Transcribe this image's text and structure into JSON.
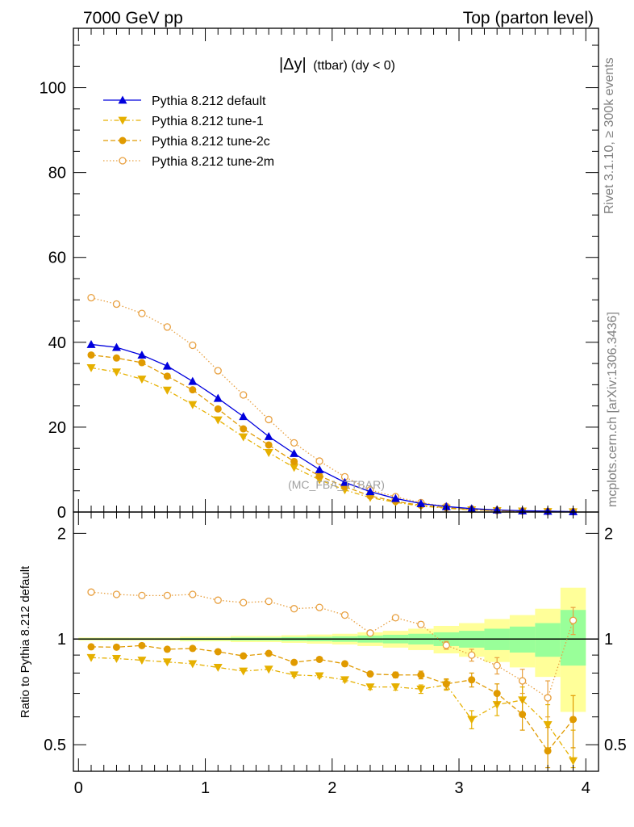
{
  "header": {
    "left": "7000 GeV pp",
    "right": "Top (parton level)"
  },
  "side_labels": {
    "rivet": "Rivet 3.1.10, ≥ 300k events",
    "source": "mcplots.cern.ch [arXiv:1306.3436]"
  },
  "chart_data": [
    {
      "type": "line",
      "panel": "main",
      "title": "|Δy| (ttbar) (dy < 0)",
      "title_parts": {
        "var": "|Δy|",
        "rest": "(ttbar) (dy < 0)"
      },
      "watermark": "(MC_FBA_TTBAR)",
      "xlabel": "",
      "ylabel": "",
      "xlim": [
        -0.04,
        4.1
      ],
      "ylim": [
        0,
        114
      ],
      "x_ticks": [
        0,
        1,
        2,
        3,
        4
      ],
      "y_ticks": [
        0,
        20,
        40,
        60,
        80,
        100
      ],
      "y_tick_labels": [
        "0",
        "20",
        "40",
        "60",
        "80",
        "100"
      ],
      "legend_position": "top-left",
      "x": [
        0.1,
        0.3,
        0.5,
        0.7,
        0.9,
        1.1,
        1.3,
        1.5,
        1.7,
        1.9,
        2.1,
        2.3,
        2.5,
        2.7,
        2.9,
        3.1,
        3.3,
        3.5,
        3.7,
        3.9
      ],
      "series": [
        {
          "name": "Pythia 8.212 default",
          "color": "#0000dd",
          "marker": "triangle-up",
          "line": "solid",
          "values": [
            39.5,
            38.8,
            37.0,
            34.4,
            30.8,
            26.8,
            22.5,
            17.8,
            13.8,
            10.0,
            7.0,
            4.8,
            3.2,
            2.0,
            1.3,
            0.8,
            0.5,
            0.3,
            0.2,
            0.1
          ]
        },
        {
          "name": "Pythia 8.212 tune-1",
          "color": "#e6b000",
          "marker": "triangle-down",
          "line": "dashdot",
          "values": [
            34.0,
            33.0,
            31.3,
            28.7,
            25.3,
            21.7,
            17.7,
            14.0,
            10.5,
            7.6,
            5.2,
            3.4,
            2.3,
            1.4,
            0.9,
            0.5,
            0.3,
            0.2,
            0.1,
            0.05
          ]
        },
        {
          "name": "Pythia 8.212 tune-2c",
          "color": "#e09a00",
          "marker": "circle",
          "line": "dashed",
          "values": [
            37.0,
            36.3,
            35.2,
            32.0,
            28.8,
            24.3,
            19.6,
            15.8,
            11.9,
            8.5,
            6.0,
            3.8,
            2.5,
            1.6,
            1.0,
            0.6,
            0.35,
            0.2,
            0.1,
            0.06
          ]
        },
        {
          "name": "Pythia 8.212 tune-2m",
          "color": "#e8a040",
          "marker": "circle-open",
          "line": "dotted",
          "values": [
            50.5,
            49.0,
            46.8,
            43.6,
            39.3,
            33.3,
            27.6,
            21.8,
            16.3,
            12.0,
            8.3,
            5.2,
            3.6,
            2.2,
            1.3,
            0.7,
            0.4,
            0.25,
            0.14,
            0.1
          ]
        }
      ]
    },
    {
      "type": "line",
      "panel": "ratio",
      "ylabel": "Ratio to Pythia 8.212 default",
      "xlim": [
        -0.04,
        4.1
      ],
      "ylim": [
        0.42,
        2.3
      ],
      "x_ticks": [
        0,
        1,
        2,
        3,
        4
      ],
      "x_tick_labels": [
        "0",
        "1",
        "2",
        "3",
        "4"
      ],
      "y_ticks": [
        0.5,
        1,
        2
      ],
      "y_tick_labels": [
        "0.5",
        "1",
        "2"
      ],
      "x": [
        0.1,
        0.3,
        0.5,
        0.7,
        0.9,
        1.1,
        1.3,
        1.5,
        1.7,
        1.9,
        2.1,
        2.3,
        2.5,
        2.7,
        2.9,
        3.1,
        3.3,
        3.5,
        3.7,
        3.9
      ],
      "bands": {
        "yellow": {
          "color": "#ffff99",
          "lo": [
            0.99,
            0.99,
            0.99,
            0.99,
            0.985,
            0.985,
            0.98,
            0.98,
            0.975,
            0.97,
            0.965,
            0.955,
            0.945,
            0.93,
            0.91,
            0.89,
            0.86,
            0.83,
            0.78,
            0.62
          ],
          "hi": [
            1.01,
            1.01,
            1.01,
            1.01,
            1.015,
            1.015,
            1.02,
            1.02,
            1.025,
            1.03,
            1.035,
            1.045,
            1.055,
            1.07,
            1.09,
            1.11,
            1.14,
            1.17,
            1.22,
            1.4
          ]
        },
        "green": {
          "color": "#99ff99",
          "lo": [
            0.995,
            0.995,
            0.995,
            0.995,
            0.993,
            0.993,
            0.99,
            0.99,
            0.987,
            0.985,
            0.982,
            0.977,
            0.972,
            0.965,
            0.955,
            0.945,
            0.93,
            0.915,
            0.89,
            0.84
          ],
          "hi": [
            1.005,
            1.005,
            1.005,
            1.005,
            1.007,
            1.007,
            1.01,
            1.01,
            1.013,
            1.015,
            1.018,
            1.023,
            1.028,
            1.035,
            1.045,
            1.055,
            1.07,
            1.085,
            1.11,
            1.21
          ]
        }
      },
      "series": [
        {
          "name": "Pythia 8.212 default",
          "color": "#000000",
          "values": [
            1,
            1,
            1,
            1,
            1,
            1,
            1,
            1,
            1,
            1,
            1,
            1,
            1,
            1,
            1,
            1,
            1,
            1,
            1,
            1
          ]
        },
        {
          "name": "Pythia 8.212 tune-1",
          "color": "#e6b000",
          "marker": "triangle-down",
          "line": "dashdot",
          "values": [
            0.885,
            0.88,
            0.87,
            0.86,
            0.85,
            0.83,
            0.81,
            0.82,
            0.79,
            0.785,
            0.765,
            0.73,
            0.73,
            0.72,
            0.74,
            0.59,
            0.65,
            0.67,
            0.57,
            0.45
          ],
          "errors": [
            0.003,
            0.003,
            0.003,
            0.004,
            0.004,
            0.005,
            0.005,
            0.006,
            0.007,
            0.008,
            0.01,
            0.012,
            0.015,
            0.02,
            0.025,
            0.035,
            0.045,
            0.06,
            0.08,
            0.1
          ]
        },
        {
          "name": "Pythia 8.212 tune-2c",
          "color": "#e09a00",
          "marker": "circle",
          "line": "dashed",
          "values": [
            0.95,
            0.948,
            0.958,
            0.935,
            0.94,
            0.92,
            0.895,
            0.91,
            0.858,
            0.875,
            0.85,
            0.795,
            0.79,
            0.79,
            0.745,
            0.765,
            0.7,
            0.61,
            0.48,
            0.59
          ],
          "errors": [
            0.003,
            0.003,
            0.003,
            0.004,
            0.004,
            0.005,
            0.005,
            0.006,
            0.007,
            0.008,
            0.01,
            0.012,
            0.015,
            0.02,
            0.025,
            0.035,
            0.045,
            0.06,
            0.08,
            0.1
          ]
        },
        {
          "name": "Pythia 8.212 tune-2m",
          "color": "#e8a040",
          "marker": "circle-open",
          "line": "dotted",
          "values": [
            1.36,
            1.34,
            1.33,
            1.33,
            1.34,
            1.29,
            1.27,
            1.28,
            1.22,
            1.23,
            1.17,
            1.04,
            1.15,
            1.1,
            0.96,
            0.9,
            0.84,
            0.76,
            0.68,
            1.13
          ],
          "errors": [
            0.003,
            0.003,
            0.003,
            0.004,
            0.004,
            0.005,
            0.005,
            0.006,
            0.007,
            0.008,
            0.01,
            0.012,
            0.015,
            0.02,
            0.025,
            0.035,
            0.045,
            0.06,
            0.08,
            0.1
          ]
        }
      ]
    }
  ]
}
